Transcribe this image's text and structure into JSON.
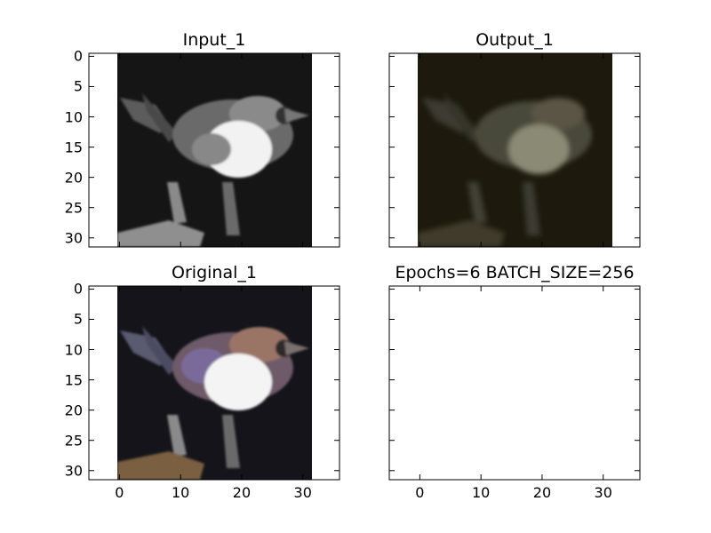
{
  "chart_data": [
    {
      "type": "image",
      "title": "Input_1",
      "image_style": "grayscale",
      "xlim": [
        -5,
        36
      ],
      "ylim": [
        31.5,
        -0.5
      ],
      "x_ticks": [],
      "y_ticks": [
        "0",
        "5",
        "10",
        "15",
        "20",
        "25",
        "30"
      ]
    },
    {
      "type": "image",
      "title": "Output_1",
      "image_style": "blurred-color",
      "xlim": [
        -5,
        36
      ],
      "ylim": [
        31.5,
        -0.5
      ],
      "x_ticks": [],
      "y_ticks": []
    },
    {
      "type": "image",
      "title": "Original_1",
      "image_style": "color",
      "xlim": [
        -5,
        36
      ],
      "ylim": [
        31.5,
        -0.5
      ],
      "x_ticks": [
        "0",
        "10",
        "20",
        "30"
      ],
      "y_ticks": [
        "0",
        "5",
        "10",
        "15",
        "20",
        "25",
        "30"
      ]
    },
    {
      "type": "image",
      "title": "Epochs=6 BATCH_SIZE=256",
      "image_style": "empty",
      "xlim": [
        -5,
        36
      ],
      "ylim": [
        31.5,
        -0.5
      ],
      "x_ticks": [
        "0",
        "10",
        "20",
        "30"
      ],
      "y_ticks": []
    }
  ]
}
